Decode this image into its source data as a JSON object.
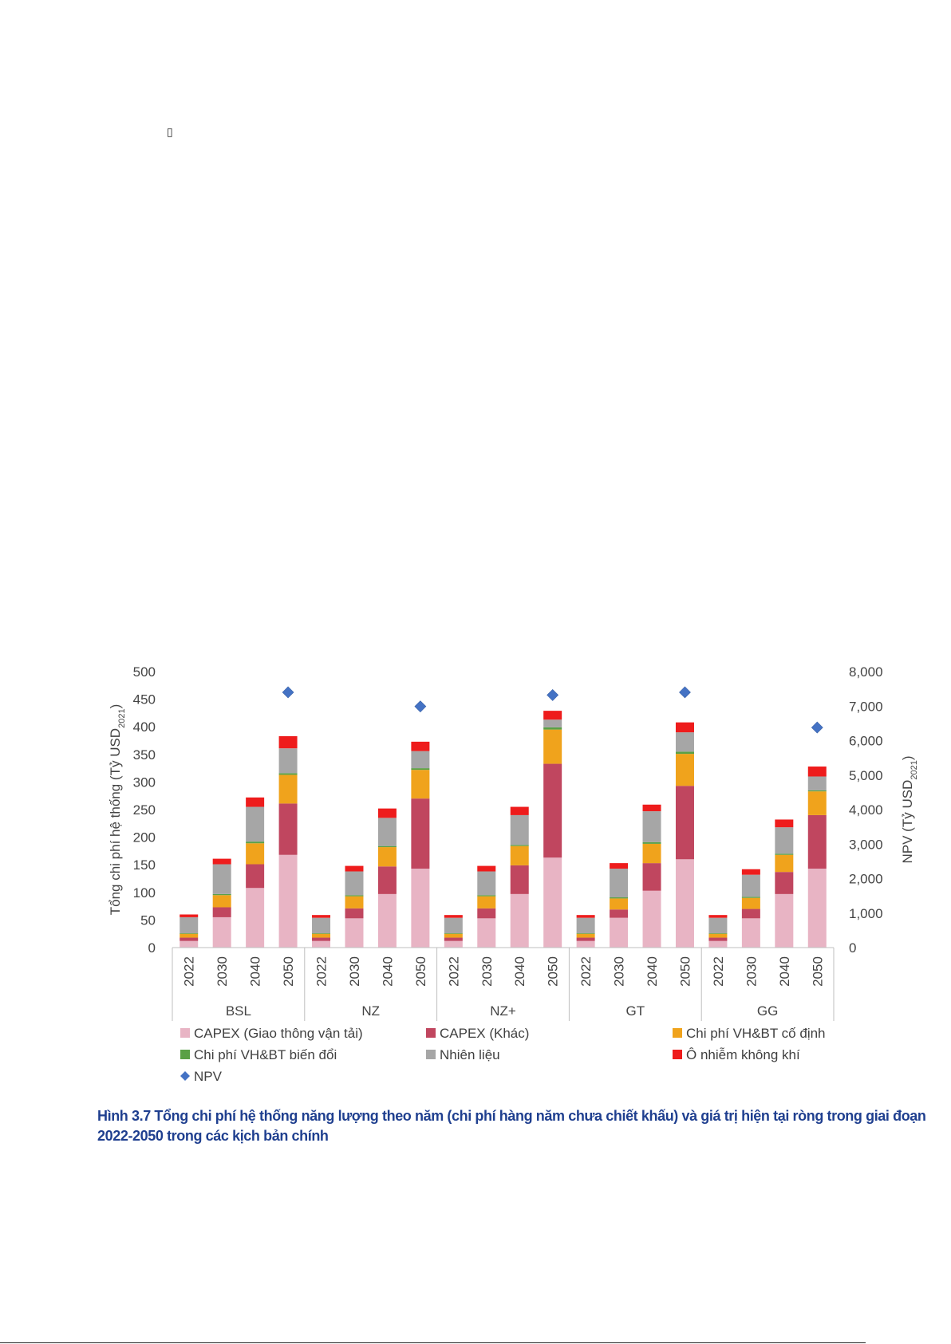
{
  "page": {
    "glyph": "▯",
    "caption": "Hình 3.7 Tổng chi phí hệ thống năng lượng theo năm (chi phí hàng năm chưa chiết khấu) và giá trị hiện tại ròng trong giai đoạn 2022-2050 trong các kịch bản chính"
  },
  "chart_data": {
    "type": "bar",
    "stacked": true,
    "ylabel": "Tổng chi phí hệ thống (Tỷ USD",
    "ylabel_sub": "2021",
    "ylabel_end": ")",
    "y2label": "NPV (Tỷ USD",
    "y2label_sub": "2021",
    "y2label_end": ")",
    "ylim": [
      0,
      500
    ],
    "y2lim": [
      0,
      8000
    ],
    "yticks": [
      "0",
      "50",
      "100",
      "150",
      "200",
      "250",
      "300",
      "350",
      "400",
      "450",
      "500"
    ],
    "y2ticks": [
      "0",
      "1,000",
      "2,000",
      "3,000",
      "4,000",
      "5,000",
      "6,000",
      "7,000",
      "8,000"
    ],
    "groups": [
      "BSL",
      "NZ",
      "NZ+",
      "GT",
      "GG"
    ],
    "years": [
      "2022",
      "2030",
      "2040",
      "2050"
    ],
    "grid": false,
    "legend_position": "bottom",
    "series": [
      {
        "name": "CAPEX (Giao thông vận tải)",
        "color": "#e8b4c4",
        "values": [
          [
            12,
            55,
            108,
            168
          ],
          [
            12,
            53,
            97,
            143
          ],
          [
            12,
            53,
            97,
            163
          ],
          [
            12,
            54,
            103,
            160
          ],
          [
            12,
            53,
            97,
            143
          ]
        ]
      },
      {
        "name": "CAPEX (Khác)",
        "color": "#c0465f",
        "values": [
          [
            6,
            18,
            43,
            93
          ],
          [
            6,
            18,
            50,
            127
          ],
          [
            6,
            18,
            52,
            170
          ],
          [
            6,
            15,
            50,
            133
          ],
          [
            6,
            17,
            40,
            97
          ]
        ]
      },
      {
        "name": "Chi phí VH&BT cố định",
        "color": "#f0a31c",
        "values": [
          [
            7,
            22,
            38,
            52
          ],
          [
            7,
            22,
            35,
            52
          ],
          [
            7,
            22,
            35,
            62
          ],
          [
            7,
            20,
            35,
            58
          ],
          [
            7,
            20,
            31,
            43
          ]
        ]
      },
      {
        "name": "Chi phí VH&BT biến đổi",
        "color": "#5aa046",
        "values": [
          [
            1,
            2,
            3,
            3
          ],
          [
            1,
            2,
            2,
            3
          ],
          [
            1,
            2,
            2,
            4
          ],
          [
            1,
            2,
            3,
            4
          ],
          [
            1,
            2,
            2,
            2
          ]
        ]
      },
      {
        "name": "Nhiên liệu",
        "color": "#a6a6a6",
        "values": [
          [
            29,
            54,
            63,
            45
          ],
          [
            28,
            43,
            51,
            31
          ],
          [
            28,
            43,
            54,
            14
          ],
          [
            28,
            52,
            56,
            35
          ],
          [
            28,
            40,
            48,
            25
          ]
        ]
      },
      {
        "name": "Ô nhiễm không khí",
        "color": "#ee1c1c",
        "values": [
          [
            5,
            10,
            17,
            22
          ],
          [
            5,
            10,
            17,
            17
          ],
          [
            5,
            10,
            15,
            16
          ],
          [
            5,
            10,
            12,
            18
          ],
          [
            5,
            10,
            14,
            18
          ]
        ]
      }
    ],
    "npv": {
      "name": "NPV",
      "color": "#4472c4",
      "values": [
        7400,
        6990,
        7320,
        7400,
        6380
      ]
    }
  }
}
